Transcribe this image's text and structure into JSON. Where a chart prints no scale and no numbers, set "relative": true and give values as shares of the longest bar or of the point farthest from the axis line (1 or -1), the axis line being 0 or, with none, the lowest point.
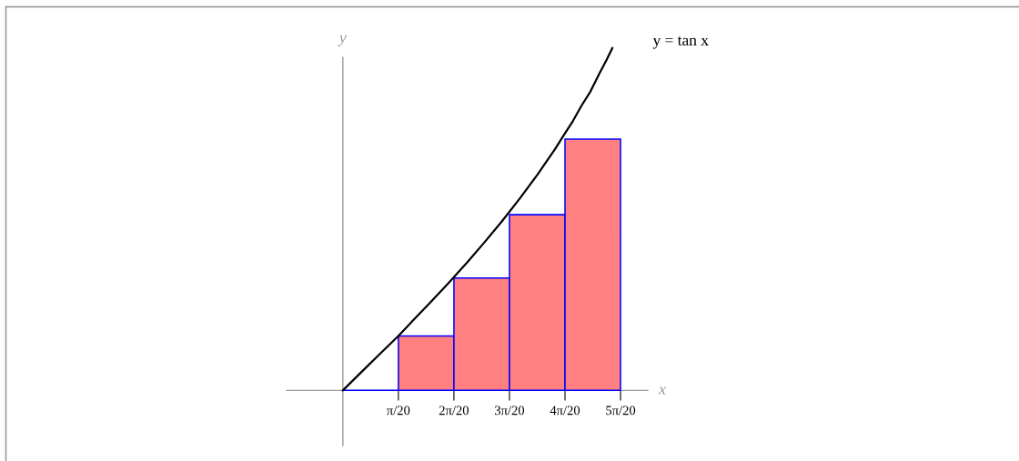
{
  "chart_data": {
    "type": "histogram",
    "relative": true,
    "bins": [
      0,
      0.157,
      0.314,
      0.471,
      0.628,
      0.785
    ],
    "values": [
      0,
      0.159,
      0.328,
      0.513,
      0.734
    ],
    "colors": [
      "#0000ff",
      "#ff8080",
      "#ff8080",
      "#ff8080",
      "#ff8080"
    ],
    "series": [
      {
        "type": "line",
        "name": "y = tan x",
        "color": "#000000",
        "x": [
          0,
          0.05,
          0.1,
          0.157,
          0.2,
          0.25,
          0.3,
          0.35,
          0.4,
          0.45,
          0.5,
          0.55,
          0.6,
          0.625,
          0.65,
          0.675,
          0.7,
          0.725,
          0.745,
          0.762
        ],
        "values": [
          0,
          0.051,
          0.102,
          0.159,
          0.206,
          0.26,
          0.315,
          0.372,
          0.432,
          0.494,
          0.56,
          0.63,
          0.705,
          0.746,
          0.786,
          0.832,
          0.873,
          0.925,
          0.964,
          1
        ]
      }
    ],
    "xlim": [
      -0.159,
      0.862
    ],
    "xticks": [
      {
        "value": 0.157,
        "label": "π/20"
      },
      {
        "value": 0.314,
        "label": "2π/20"
      },
      {
        "value": 0.471,
        "label": "3π/20"
      },
      {
        "value": 0.628,
        "label": "4π/20"
      },
      {
        "value": 0.785,
        "label": "5π/20"
      }
    ],
    "xlabel": "x",
    "ylabel": "y"
  }
}
